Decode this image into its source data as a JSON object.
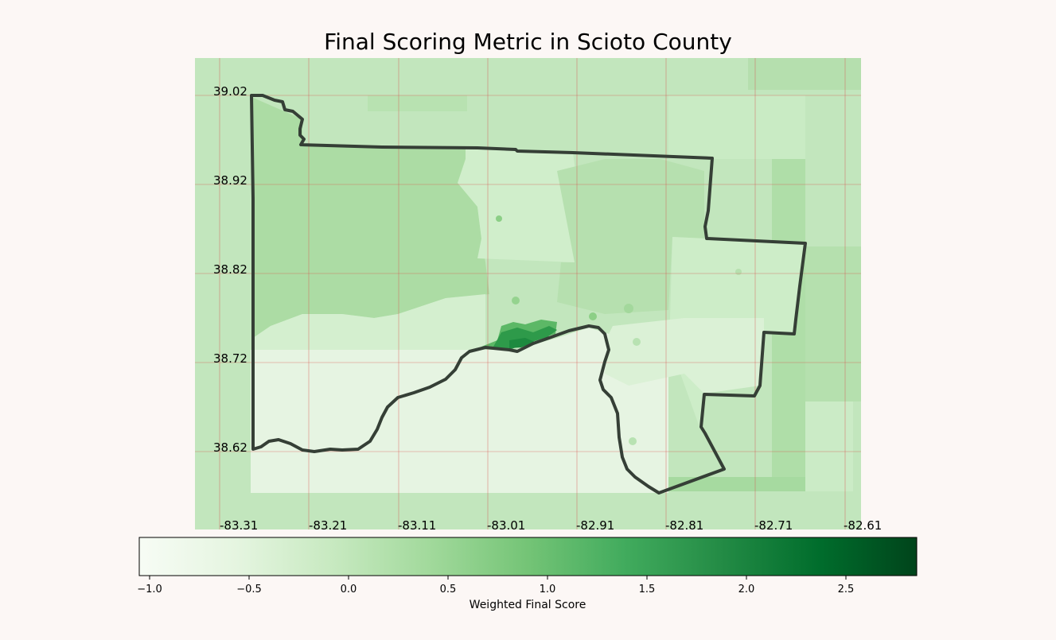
{
  "title": "Final Scoring Metric in Scioto County",
  "colors": {
    "background": "#fcf7f5",
    "grid": "#d9534f",
    "boundary": "#353f36"
  },
  "map": {
    "lat_labels": [
      "39.02",
      "38.92",
      "38.82",
      "38.72",
      "38.62"
    ],
    "lon_labels": [
      "-83.31",
      "-83.21",
      "-83.11",
      "-83.01",
      "-82.91",
      "-82.81",
      "-82.71",
      "-82.61"
    ],
    "grid": true
  },
  "colorbar": {
    "label": "Weighted Final Score",
    "colormap": "Greens",
    "range": [
      -1.0,
      2.85
    ],
    "ticks": [
      "−1.0",
      "−0.5",
      "0.0",
      "0.5",
      "1.0",
      "1.5",
      "2.0",
      "2.5"
    ]
  }
}
